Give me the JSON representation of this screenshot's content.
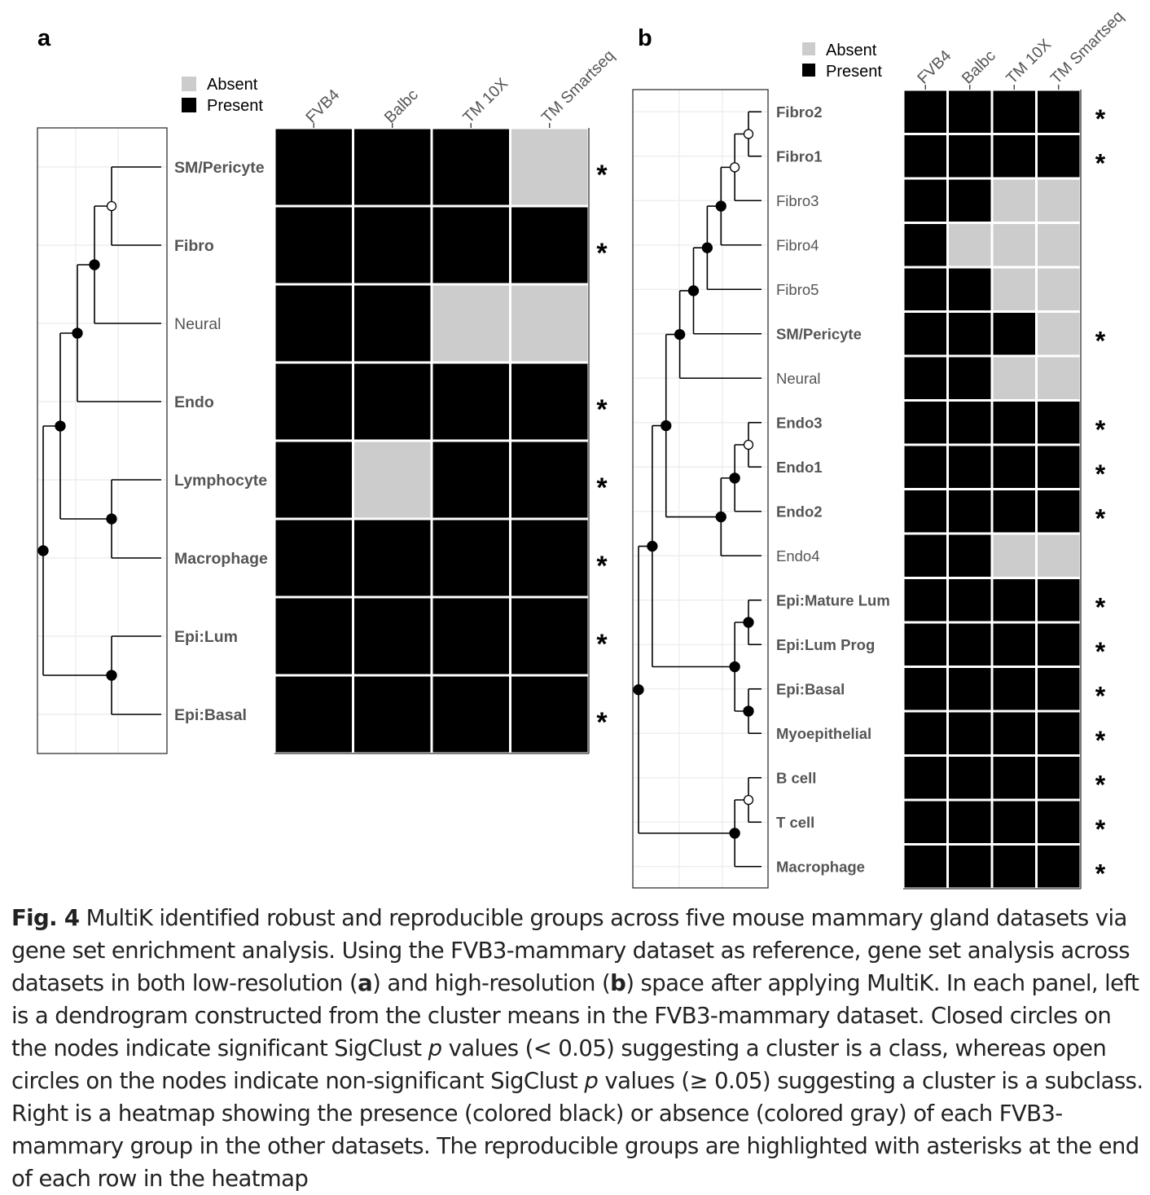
{
  "colors": {
    "present": "#000000",
    "absent": "#cccccc",
    "label": "#555555",
    "tree": "#000000",
    "grid": "#ebebeb",
    "frame": "#333333"
  },
  "legend": {
    "absent": "Absent",
    "present": "Present"
  },
  "panels": [
    {
      "letter": "a",
      "columns": [
        "FVB4",
        "Balbc",
        "TM 10X",
        "TM Smartseq"
      ],
      "rows": [
        {
          "label": "SM/Pericyte",
          "bold": true,
          "presence": [
            1,
            1,
            1,
            0
          ],
          "star": "*"
        },
        {
          "label": "Fibro",
          "bold": true,
          "presence": [
            1,
            1,
            1,
            1
          ],
          "star": "*"
        },
        {
          "label": "Neural",
          "bold": false,
          "presence": [
            1,
            1,
            0,
            0
          ],
          "star": ""
        },
        {
          "label": "Endo",
          "bold": true,
          "presence": [
            1,
            1,
            1,
            1
          ],
          "star": "*"
        },
        {
          "label": "Lymphocyte",
          "bold": true,
          "presence": [
            1,
            0,
            1,
            1
          ],
          "star": "*"
        },
        {
          "label": "Macrophage",
          "bold": true,
          "presence": [
            1,
            1,
            1,
            1
          ],
          "star": "*"
        },
        {
          "label": "Epi:Lum",
          "bold": true,
          "presence": [
            1,
            1,
            1,
            1
          ],
          "star": "*"
        },
        {
          "label": "Epi:Basal",
          "bold": true,
          "presence": [
            1,
            1,
            1,
            1
          ],
          "star": "*"
        }
      ],
      "dendrogram": {
        "merges": [
          {
            "a": 0,
            "b": 1,
            "sig": false
          },
          {
            "a": -1,
            "b": 2,
            "sig": true
          },
          {
            "a": -2,
            "b": 3,
            "sig": true
          },
          {
            "a": 4,
            "b": 5,
            "sig": true
          },
          {
            "a": -3,
            "b": -4,
            "sig": true
          },
          {
            "a": 6,
            "b": 7,
            "sig": true
          },
          {
            "a": -5,
            "b": -6,
            "sig": true
          }
        ]
      }
    },
    {
      "letter": "b",
      "columns": [
        "FVB4",
        "Balbc",
        "TM 10X",
        "TM Smartseq"
      ],
      "rows": [
        {
          "label": "Fibro2",
          "bold": true,
          "presence": [
            1,
            1,
            1,
            1
          ],
          "star": "*"
        },
        {
          "label": "Fibro1",
          "bold": true,
          "presence": [
            1,
            1,
            1,
            1
          ],
          "star": "*"
        },
        {
          "label": "Fibro3",
          "bold": false,
          "presence": [
            1,
            1,
            0,
            0
          ],
          "star": ""
        },
        {
          "label": "Fibro4",
          "bold": false,
          "presence": [
            1,
            0,
            0,
            0
          ],
          "star": ""
        },
        {
          "label": "Fibro5",
          "bold": false,
          "presence": [
            1,
            1,
            0,
            0
          ],
          "star": ""
        },
        {
          "label": "SM/Pericyte",
          "bold": true,
          "presence": [
            1,
            1,
            1,
            0
          ],
          "star": "*"
        },
        {
          "label": "Neural",
          "bold": false,
          "presence": [
            1,
            1,
            0,
            0
          ],
          "star": ""
        },
        {
          "label": "Endo3",
          "bold": true,
          "presence": [
            1,
            1,
            1,
            1
          ],
          "star": "*"
        },
        {
          "label": "Endo1",
          "bold": true,
          "presence": [
            1,
            1,
            1,
            1
          ],
          "star": "*"
        },
        {
          "label": "Endo2",
          "bold": true,
          "presence": [
            1,
            1,
            1,
            1
          ],
          "star": "*"
        },
        {
          "label": "Endo4",
          "bold": false,
          "presence": [
            1,
            1,
            0,
            0
          ],
          "star": ""
        },
        {
          "label": "Epi:Mature Lum",
          "bold": true,
          "presence": [
            1,
            1,
            1,
            1
          ],
          "star": "*"
        },
        {
          "label": "Epi:Lum Prog",
          "bold": true,
          "presence": [
            1,
            1,
            1,
            1
          ],
          "star": "*"
        },
        {
          "label": "Epi:Basal",
          "bold": true,
          "presence": [
            1,
            1,
            1,
            1
          ],
          "star": "*"
        },
        {
          "label": "Myoepithelial",
          "bold": true,
          "presence": [
            1,
            1,
            1,
            1
          ],
          "star": "*"
        },
        {
          "label": "B cell",
          "bold": true,
          "presence": [
            1,
            1,
            1,
            1
          ],
          "star": "*"
        },
        {
          "label": "T cell",
          "bold": true,
          "presence": [
            1,
            1,
            1,
            1
          ],
          "star": "*"
        },
        {
          "label": "Macrophage",
          "bold": true,
          "presence": [
            1,
            1,
            1,
            1
          ],
          "star": "*"
        }
      ],
      "dendrogram": {
        "merges": [
          {
            "a": 0,
            "b": 1,
            "sig": false
          },
          {
            "a": -1,
            "b": 2,
            "sig": false
          },
          {
            "a": -2,
            "b": 3,
            "sig": true
          },
          {
            "a": -3,
            "b": 4,
            "sig": true
          },
          {
            "a": -4,
            "b": 5,
            "sig": true
          },
          {
            "a": -5,
            "b": 6,
            "sig": true
          },
          {
            "a": 7,
            "b": 8,
            "sig": false
          },
          {
            "a": -7,
            "b": 9,
            "sig": true
          },
          {
            "a": -8,
            "b": 10,
            "sig": true
          },
          {
            "a": -6,
            "b": -9,
            "sig": true
          },
          {
            "a": 11,
            "b": 12,
            "sig": true
          },
          {
            "a": 13,
            "b": 14,
            "sig": true
          },
          {
            "a": -11,
            "b": -12,
            "sig": true
          },
          {
            "a": -10,
            "b": -13,
            "sig": true
          },
          {
            "a": 15,
            "b": 16,
            "sig": false
          },
          {
            "a": -15,
            "b": 17,
            "sig": true
          },
          {
            "a": -14,
            "b": -16,
            "sig": true
          }
        ]
      }
    }
  ],
  "caption": {
    "fig_label": "Fig. 4",
    "s1": " MultiK identified robust and reproducible groups across five mouse mammary gland datasets via gene set enrichment analysis. Using the FVB3-mammary dataset as reference, gene set analysis across datasets in both low-resolution (",
    "a": "a",
    "s2": ") and high-resolution (",
    "b": "b",
    "s3": ") space after applying MultiK. In each panel, left is a dendrogram constructed from the cluster means in the FVB3-mammary dataset. Closed circles on the nodes indicate significant SigClust ",
    "p1": "p",
    "s4": " values (< 0.05) suggesting a cluster is a class, whereas open circles on the nodes indicate non-significant SigClust ",
    "p2": "p",
    "s5": " values (≥ 0.05) suggesting a cluster is a subclass. Right is a heatmap showing the presence (colored black) or absence (colored gray) of each FVB3-mammary group in the other datasets. The reproducible groups are highlighted with asterisks at the end of each row in the heatmap"
  }
}
